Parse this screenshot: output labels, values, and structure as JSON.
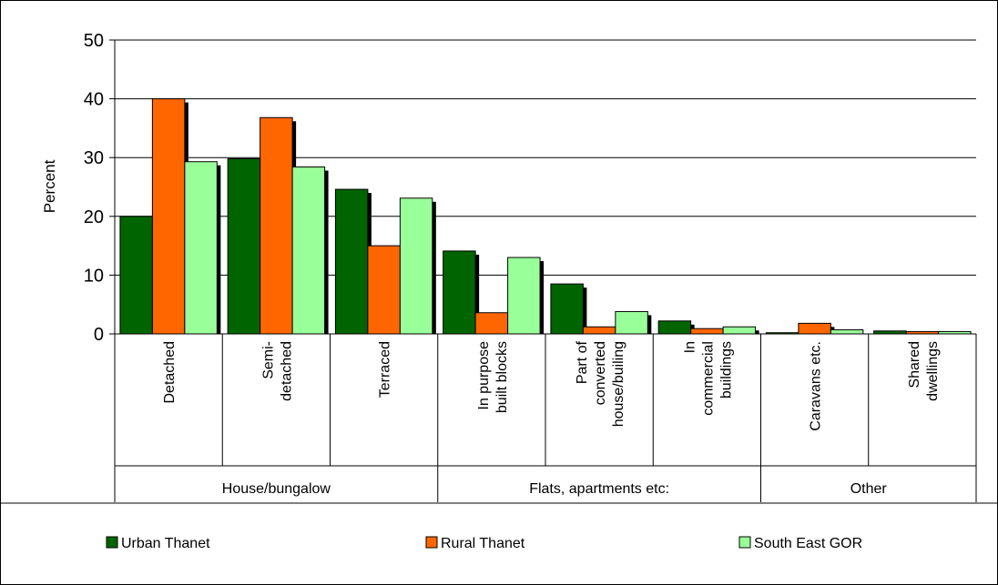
{
  "chart_data": {
    "type": "bar",
    "title": "",
    "ylabel": "Percent",
    "xlabel": "",
    "ylim": [
      0,
      50
    ],
    "yticks": [
      0,
      10,
      20,
      30,
      40,
      50
    ],
    "grid": true,
    "legend_position": "bottom",
    "categories": [
      [
        "Detached"
      ],
      [
        "Semi-",
        "detached"
      ],
      [
        "Terraced"
      ],
      [
        "In purpose",
        "built blocks"
      ],
      [
        "Part of",
        "converted",
        "house/builing"
      ],
      [
        "In",
        "commercial",
        "buildings"
      ],
      [
        "Caravans etc."
      ],
      [
        "Shared",
        "dwellings"
      ]
    ],
    "groups": [
      {
        "label": "House/bungalow",
        "span": [
          0,
          2
        ]
      },
      {
        "label": "Flats, apartments etc:",
        "span": [
          3,
          5
        ]
      },
      {
        "label": "Other",
        "span": [
          6,
          7
        ]
      }
    ],
    "series": [
      {
        "name": "Urban Thanet",
        "color": "#006400",
        "values": [
          20.0,
          29.8,
          24.6,
          14.1,
          8.5,
          2.2,
          0.2,
          0.5
        ]
      },
      {
        "name": "Rural Thanet",
        "color": "#ff6600",
        "values": [
          40.0,
          36.8,
          15.0,
          3.6,
          1.2,
          0.9,
          1.8,
          0.4
        ]
      },
      {
        "name": "South East GOR",
        "color": "#99ff99",
        "values": [
          29.3,
          28.4,
          23.1,
          13.0,
          3.8,
          1.2,
          0.7,
          0.4
        ]
      }
    ]
  }
}
